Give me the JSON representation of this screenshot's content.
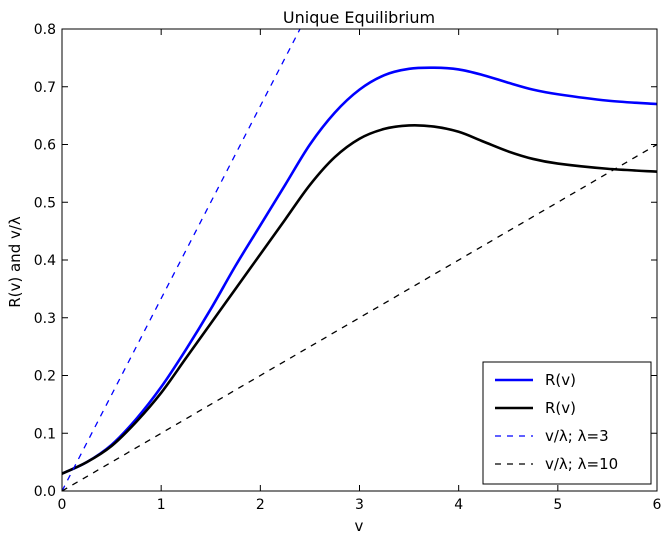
{
  "chart_data": {
    "type": "line",
    "title": "Unique Equilibrium",
    "xlabel": "v",
    "ylabel": "R(v) and v/λ",
    "xlim": [
      0,
      6
    ],
    "ylim": [
      0.0,
      0.8
    ],
    "xticks": [
      0,
      1,
      2,
      3,
      4,
      5,
      6
    ],
    "xtick_labels": [
      "0",
      "1",
      "2",
      "3",
      "4",
      "5",
      "6"
    ],
    "yticks": [
      0.0,
      0.1,
      0.2,
      0.3,
      0.4,
      0.5,
      0.6,
      0.7,
      0.8
    ],
    "ytick_labels": [
      "0.0",
      "0.1",
      "0.2",
      "0.3",
      "0.4",
      "0.5",
      "0.6",
      "0.7",
      "0.8"
    ],
    "grid": false,
    "legend_position": "lower-right",
    "series": [
      {
        "name": "R(v)",
        "color": "#0000ff",
        "style": "solid",
        "x": [
          0,
          0.25,
          0.5,
          0.75,
          1.0,
          1.25,
          1.5,
          1.75,
          2.0,
          2.25,
          2.5,
          2.75,
          3.0,
          3.25,
          3.5,
          3.75,
          4.0,
          4.25,
          4.5,
          4.75,
          5.0,
          5.5,
          6.0
        ],
        "y": [
          0.03,
          0.05,
          0.08,
          0.125,
          0.18,
          0.245,
          0.315,
          0.39,
          0.46,
          0.53,
          0.6,
          0.655,
          0.695,
          0.72,
          0.731,
          0.733,
          0.73,
          0.72,
          0.707,
          0.695,
          0.687,
          0.676,
          0.67
        ]
      },
      {
        "name": "R(v)",
        "color": "#000000",
        "style": "solid",
        "x": [
          0,
          0.25,
          0.5,
          0.75,
          1.0,
          1.25,
          1.5,
          1.75,
          2.0,
          2.25,
          2.5,
          2.75,
          3.0,
          3.25,
          3.5,
          3.75,
          4.0,
          4.25,
          4.5,
          4.75,
          5.0,
          5.5,
          6.0
        ],
        "y": [
          0.03,
          0.05,
          0.078,
          0.12,
          0.17,
          0.23,
          0.29,
          0.35,
          0.41,
          0.47,
          0.53,
          0.578,
          0.61,
          0.627,
          0.633,
          0.631,
          0.622,
          0.605,
          0.588,
          0.575,
          0.567,
          0.558,
          0.553
        ]
      },
      {
        "name": "v/λ; λ=3",
        "color": "#0000ff",
        "style": "dashed",
        "x": [
          0,
          2.4
        ],
        "y": [
          0.0,
          0.8
        ]
      },
      {
        "name": "v/λ; λ=10",
        "color": "#000000",
        "style": "dashed",
        "x": [
          0,
          6
        ],
        "y": [
          0.0,
          0.6
        ]
      }
    ]
  }
}
